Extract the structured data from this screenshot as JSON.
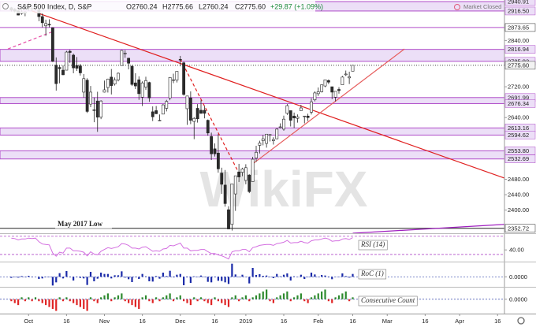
{
  "header": {
    "symbol": "S&P 500 Index, D, S&P",
    "open": "O2760.24",
    "high": "H2775.66",
    "low": "L2760.24",
    "close": "C2775.60",
    "change": "+29.87 (+1.09%)",
    "status": "Market Closed"
  },
  "watermark": "WikiFX",
  "chart_data": [
    {
      "type": "candlestick",
      "up_color": "#ffffff",
      "down_color": "#2b2b2b",
      "level_color": "#b04dc9",
      "zone_color": "#ecdff7",
      "xlim": [
        -1,
        143
      ],
      "xticks": [
        {
          "value": 5,
          "label": "Oct"
        },
        {
          "value": 16,
          "label": "16"
        },
        {
          "value": 27,
          "label": "Nov"
        },
        {
          "value": 38,
          "label": "16"
        },
        {
          "value": 49,
          "label": "Dec"
        },
        {
          "value": 59,
          "label": "16"
        },
        {
          "value": 68,
          "label": "2019"
        },
        {
          "value": 79,
          "label": "16"
        },
        {
          "value": 89,
          "label": "Feb"
        },
        {
          "value": 99,
          "label": "16"
        },
        {
          "value": 109,
          "label": "Mar"
        },
        {
          "value": 120,
          "label": "16"
        },
        {
          "value": 130,
          "label": "Apr"
        },
        {
          "value": 141,
          "label": "16"
        }
      ],
      "ylim": [
        2340,
        2945
      ],
      "yticks": [
        {
          "value": 2840,
          "label": "2840.00"
        },
        {
          "value": 2720,
          "label": "2720.00"
        },
        {
          "value": 2640,
          "label": "2640.00"
        },
        {
          "value": 2480,
          "label": "2480.00"
        },
        {
          "value": 2440,
          "label": "2440.00"
        },
        {
          "value": 2400,
          "label": "2400.00"
        }
      ],
      "zones": [
        {
          "high": {
            "value": 2940.91,
            "label": "2940.91"
          },
          "low": {
            "value": 2916.5,
            "label": "2916.50"
          }
        },
        {
          "high": {
            "value": 2816.94,
            "label": "2816.94"
          },
          "low": {
            "value": 2785.93,
            "label": "2785.93"
          }
        },
        {
          "high": {
            "value": 2691.99,
            "label": "2691.99"
          },
          "low": {
            "value": 2676.34,
            "label": "2676.34"
          }
        },
        {
          "high": {
            "value": 2613.16,
            "label": "2613.16"
          },
          "low": {
            "value": 2594.62,
            "label": "2594.62"
          }
        },
        {
          "high": {
            "value": 2553.8,
            "label": "2553.80"
          },
          "low": {
            "value": 2532.69,
            "label": "2532.69"
          }
        }
      ],
      "levels": [
        {
          "value": 2873.65,
          "label": "2873.65"
        },
        {
          "value": 2352.72,
          "label": "2352.72",
          "text": "May 2017 Low"
        }
      ],
      "last": {
        "value": 2775.6,
        "label": "2775.60"
      },
      "trendlines": [
        {
          "color": "#e02020",
          "dash": false,
          "points": [
            [
              6,
              2916.5
            ],
            [
              143,
              2483
            ]
          ]
        },
        {
          "color": "#e02020",
          "dash": true,
          "points": [
            [
              49,
              2792
            ],
            [
              66,
              2496
            ]
          ]
        },
        {
          "color": "#e65c5c",
          "dash": false,
          "points": [
            [
              70,
              2520
            ],
            [
              114,
              2818
            ]
          ]
        },
        {
          "color": "#e64ca6",
          "dash": true,
          "points": [
            [
              -1,
              2818
            ],
            [
              12,
              2863
            ]
          ]
        },
        {
          "color": "#a020c0",
          "dash": false,
          "points": [
            [
              99,
              2340
            ],
            [
              143,
              2363
            ]
          ]
        }
      ],
      "open": [
        2925,
        2921,
        2917,
        2910,
        2911,
        2926,
        2923,
        2931,
        2919,
        2902,
        2878,
        2882,
        2873,
        2776,
        2770,
        2763,
        2763,
        2812,
        2802,
        2775,
        2774,
        2706,
        2737,
        2675,
        2660,
        2683,
        2641,
        2706,
        2718,
        2745,
        2727,
        2738,
        2775,
        2806,
        2794,
        2773,
        2730,
        2738,
        2693,
        2719,
        2731,
        2655,
        2658,
        2633,
        2649,
        2664,
        2691,
        2737,
        2737,
        2791,
        2782,
        2663,
        2691,
        2630,
        2664,
        2659,
        2659,
        2633,
        2591,
        2559,
        2548,
        2496,
        2465,
        2401,
        2363,
        2442,
        2499,
        2498,
        2477,
        2491,
        2474,
        2535,
        2568,
        2580,
        2573,
        2595,
        2580,
        2585,
        2614,
        2610,
        2651,
        2658,
        2644,
        2638,
        2658,
        2644,
        2644,
        2654,
        2686,
        2702,
        2707,
        2722,
        2736,
        2720,
        2693,
        2713,
        2725,
        2751,
        2743,
        2760.24
      ],
      "high": [
        2927,
        2924,
        2932,
        2924,
        2916,
        2938,
        2932,
        2940,
        2920,
        2910,
        2894,
        2895,
        2874,
        2796,
        2776,
        2775,
        2813,
        2816,
        2806,
        2797,
        2779,
        2753,
        2742,
        2722,
        2692,
        2707,
        2685,
        2736,
        2741,
        2766,
        2744,
        2757,
        2815,
        2815,
        2795,
        2776,
        2755,
        2747,
        2734,
        2746,
        2733,
        2669,
        2670,
        2648,
        2675,
        2686,
        2745,
        2754,
        2760,
        2800,
        2785,
        2696,
        2708,
        2641,
        2675,
        2685,
        2670,
        2635,
        2601,
        2573,
        2597,
        2510,
        2504,
        2410,
        2467,
        2489,
        2520,
        2510,
        2519,
        2493,
        2538,
        2567,
        2580,
        2595,
        2597,
        2596,
        2589,
        2613,
        2625,
        2645,
        2675,
        2658,
        2653,
        2648,
        2673,
        2644,
        2650,
        2690,
        2708,
        2718,
        2725,
        2738,
        2739,
        2720,
        2708,
        2719,
        2748,
        2762,
        2759,
        2775.66
      ],
      "low": [
        2915,
        2913,
        2905,
        2907,
        2903,
        2917,
        2916,
        2921,
        2890,
        2874,
        2852,
        2874,
        2784,
        2710,
        2729,
        2750,
        2763,
        2782,
        2755,
        2761,
        2749,
        2692,
        2652,
        2667,
        2628,
        2603,
        2636,
        2705,
        2705,
        2700,
        2723,
        2734,
        2775,
        2795,
        2765,
        2722,
        2714,
        2686,
        2670,
        2712,
        2681,
        2631,
        2649,
        2631,
        2649,
        2656,
        2685,
        2729,
        2731,
        2773,
        2697,
        2621,
        2623,
        2584,
        2627,
        2650,
        2638,
        2593,
        2530,
        2539,
        2497,
        2442,
        2409,
        2351,
        2347,
        2398,
        2473,
        2488,
        2467,
        2444,
        2474,
        2525,
        2547,
        2568,
        2562,
        2578,
        2570,
        2584,
        2612,
        2606,
        2647,
        2617,
        2613,
        2627,
        2658,
        2625,
        2631,
        2648,
        2682,
        2696,
        2705,
        2719,
        2727,
        2688,
        2682,
        2702,
        2725,
        2748,
        2727,
        2760.24
      ],
      "close": [
        2919,
        2916,
        2906,
        2914,
        2914,
        2925,
        2923,
        2926,
        2902,
        2886,
        2884,
        2880,
        2786,
        2728,
        2767,
        2751,
        2810,
        2809,
        2769,
        2768,
        2756,
        2741,
        2656,
        2706,
        2659,
        2641,
        2683,
        2712,
        2740,
        2723,
        2738,
        2755,
        2814,
        2807,
        2781,
        2726,
        2722,
        2702,
        2730,
        2736,
        2691,
        2642,
        2650,
        2633,
        2673,
        2682,
        2744,
        2738,
        2760,
        2790,
        2700,
        2696,
        2633,
        2638,
        2637,
        2651,
        2651,
        2600,
        2546,
        2546,
        2507,
        2467,
        2417,
        2351,
        2468,
        2489,
        2486,
        2507,
        2510,
        2448,
        2532,
        2550,
        2574,
        2585,
        2597,
        2596,
        2583,
        2610,
        2616,
        2636,
        2671,
        2633,
        2639,
        2642,
        2665,
        2644,
        2640,
        2681,
        2704,
        2707,
        2725,
        2738,
        2732,
        2706,
        2708,
        2710,
        2745,
        2753,
        2746,
        2775.6
      ]
    },
    {
      "type": "line",
      "name": "RSI (14)",
      "color": "#d36ee0",
      "level_color": "#b04dc9",
      "ylim": [
        16,
        75
      ],
      "yticks": [
        {
          "value": 40,
          "label": "40.00"
        }
      ],
      "levels": [
        30,
        70
      ],
      "values": [
        66,
        65,
        62,
        64,
        64,
        66,
        65,
        66,
        58,
        53,
        52,
        51,
        33,
        26,
        35,
        33,
        44,
        44,
        38,
        38,
        37,
        35,
        27,
        36,
        31,
        29,
        37,
        41,
        45,
        43,
        45,
        47,
        54,
        53,
        50,
        44,
        44,
        42,
        46,
        47,
        42,
        37,
        38,
        37,
        42,
        43,
        50,
        49,
        52,
        55,
        44,
        44,
        38,
        39,
        39,
        41,
        41,
        36,
        32,
        32,
        29,
        27,
        24,
        20,
        36,
        38,
        38,
        41,
        41,
        36,
        45,
        47,
        50,
        51,
        52,
        52,
        50,
        54,
        55,
        57,
        61,
        55,
        56,
        56,
        59,
        56,
        55,
        60,
        62,
        62,
        64,
        66,
        64,
        59,
        60,
        60,
        64,
        65,
        63,
        67
      ]
    },
    {
      "type": "bar",
      "name": "RoC (1)",
      "color": "#1a2aa8",
      "ylim": [
        -3.5,
        5.5
      ],
      "yticks": [
        {
          "value": 0,
          "label": "0.0000"
        }
      ],
      "values": [
        -0.4,
        -0.1,
        -0.3,
        0.3,
        0,
        0.4,
        -0.1,
        0.1,
        -0.8,
        -0.6,
        -0.1,
        -0.1,
        -3.3,
        -2.1,
        1.4,
        -0.6,
        2.2,
        0,
        -1.4,
        0,
        -0.4,
        -0.6,
        -3.1,
        1.9,
        -1.7,
        -0.7,
        1.6,
        1.1,
        1.1,
        -0.6,
        0.6,
        0.6,
        2.1,
        -0.3,
        -0.9,
        -2,
        -0.1,
        -0.8,
        1.1,
        0.2,
        -1.7,
        -1.8,
        0.3,
        -0.7,
        1.6,
        0.3,
        2.3,
        -0.2,
        0.8,
        1.1,
        -3.2,
        -0.2,
        -2.3,
        0.2,
        0,
        0.5,
        0,
        -1.9,
        -2.1,
        0,
        -1.5,
        -1.6,
        -2.1,
        -2.7,
        5,
        0.9,
        -0.1,
        0.8,
        0.1,
        -2.5,
        3.4,
        0.7,
        1,
        0.4,
        0.5,
        0,
        -0.5,
        1.1,
        0.2,
        0.8,
        1.3,
        -1.4,
        0.2,
        0.1,
        0.8,
        -0.8,
        -0.1,
        1.6,
        0.9,
        0.1,
        0.7,
        0.5,
        -0.2,
        -0.9,
        0.1,
        0.1,
        1.3,
        0.3,
        -0.3,
        1.1
      ]
    },
    {
      "type": "bar",
      "name": "Consecutive Count",
      "up_color": "#2e8b2e",
      "down_color": "#e02424",
      "ylim": [
        -7,
        6
      ],
      "yticks": [
        {
          "value": 0,
          "label": "0.0000"
        }
      ],
      "values": [
        -1,
        -2,
        -3,
        1,
        -1,
        1,
        -1,
        1,
        -1,
        -2,
        -3,
        -4,
        -5,
        -6,
        1,
        -1,
        1,
        -1,
        -2,
        -3,
        -4,
        -5,
        -6,
        1,
        -1,
        -2,
        1,
        2,
        3,
        -1,
        1,
        2,
        3,
        -1,
        -2,
        -3,
        -4,
        -5,
        1,
        2,
        -1,
        -2,
        1,
        -1,
        1,
        2,
        3,
        -1,
        1,
        2,
        -1,
        -2,
        -3,
        1,
        -1,
        1,
        -1,
        -2,
        -3,
        1,
        -1,
        -2,
        -3,
        -4,
        1,
        2,
        -1,
        1,
        2,
        -1,
        1,
        2,
        3,
        4,
        5,
        -1,
        -2,
        1,
        2,
        3,
        4,
        -1,
        1,
        2,
        3,
        -1,
        -2,
        1,
        2,
        3,
        4,
        5,
        -1,
        -2,
        1,
        2,
        3,
        4,
        -1,
        1
      ]
    }
  ]
}
